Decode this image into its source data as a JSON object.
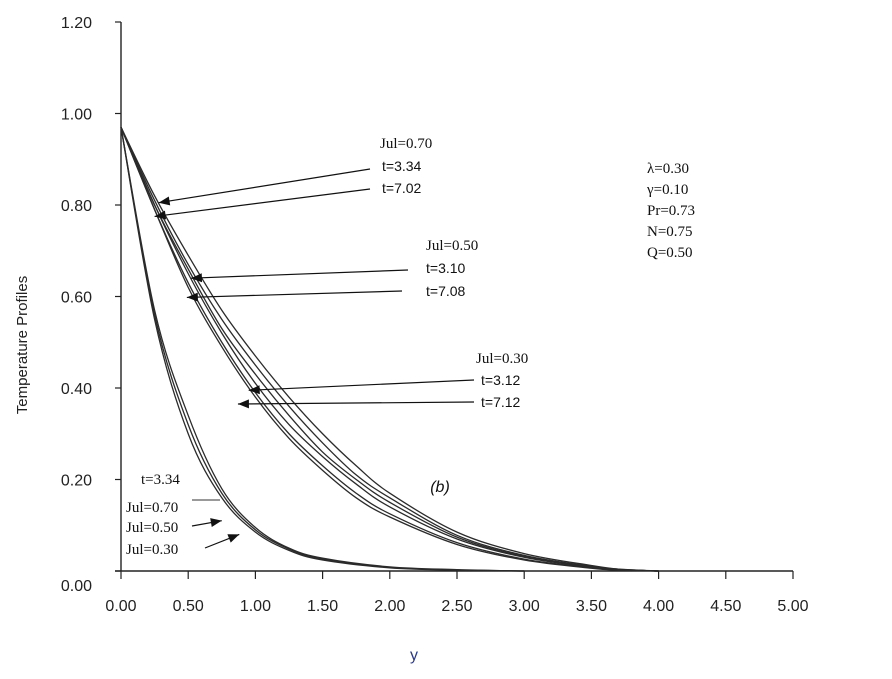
{
  "chart_data": {
    "type": "line",
    "title": "",
    "xlabel": "y",
    "ylabel": "Temperature Profiles",
    "xlim": [
      0,
      5
    ],
    "ylim": [
      0,
      1.2
    ],
    "x_ticks": [
      "0.00",
      "0.50",
      "1.00",
      "1.50",
      "2.00",
      "2.50",
      "3.00",
      "3.50",
      "4.00",
      "4.50",
      "5.00"
    ],
    "y_ticks": [
      "0.00",
      "0.20",
      "0.40",
      "0.60",
      "0.80",
      "1.00",
      "1.20"
    ],
    "grid": false,
    "panel_label": "(b)",
    "parameters": [
      "λ=0.30",
      "γ=0.10",
      "Pr=0.73",
      "N=0.75",
      "Q=0.50"
    ],
    "series": [
      {
        "x": [
          0,
          0.25,
          0.5,
          0.75,
          1.0,
          1.25,
          1.5,
          1.75,
          2.0,
          2.5,
          3.0,
          3.5,
          3.7,
          4.0
        ],
        "y": [
          0.97,
          0.82,
          0.69,
          0.57,
          0.47,
          0.38,
          0.3,
          0.23,
          0.17,
          0.085,
          0.038,
          0.012,
          0.004,
          0.0
        ]
      },
      {
        "x": [
          0,
          0.25,
          0.5,
          0.75,
          1.0,
          1.25,
          1.5,
          1.75,
          2.0,
          2.5,
          3.0,
          3.5,
          3.7,
          4.0
        ],
        "y": [
          0.97,
          0.8,
          0.65,
          0.52,
          0.41,
          0.32,
          0.25,
          0.19,
          0.14,
          0.07,
          0.03,
          0.008,
          0.003,
          0.0
        ]
      },
      {
        "x": [
          0,
          0.25,
          0.5,
          0.75,
          1.0,
          1.25,
          1.5,
          1.75,
          2.0,
          2.5,
          3.0,
          3.5,
          3.7,
          4.0
        ],
        "y": [
          0.97,
          0.81,
          0.67,
          0.55,
          0.45,
          0.36,
          0.28,
          0.21,
          0.16,
          0.078,
          0.034,
          0.01,
          0.004,
          0.0
        ]
      },
      {
        "x": [
          0,
          0.25,
          0.5,
          0.75,
          1.0,
          1.25,
          1.5,
          1.75,
          2.0,
          2.5,
          3.0,
          3.5,
          3.7,
          4.0
        ],
        "y": [
          0.97,
          0.79,
          0.63,
          0.5,
          0.39,
          0.3,
          0.23,
          0.17,
          0.125,
          0.062,
          0.026,
          0.007,
          0.002,
          0.0
        ]
      },
      {
        "x": [
          0,
          0.25,
          0.5,
          0.75,
          1.0,
          1.25,
          1.5,
          1.75,
          2.0,
          2.5,
          3.0,
          3.5,
          3.7,
          4.0
        ],
        "y": [
          0.97,
          0.8,
          0.66,
          0.53,
          0.43,
          0.34,
          0.26,
          0.2,
          0.15,
          0.074,
          0.032,
          0.009,
          0.003,
          0.0
        ]
      },
      {
        "x": [
          0,
          0.25,
          0.5,
          0.75,
          1.0,
          1.25,
          1.5,
          1.75,
          2.0,
          2.5,
          3.0,
          3.5,
          3.7,
          4.0
        ],
        "y": [
          0.97,
          0.79,
          0.62,
          0.49,
          0.38,
          0.29,
          0.22,
          0.16,
          0.118,
          0.058,
          0.024,
          0.006,
          0.002,
          0.0
        ]
      },
      {
        "x": [
          0,
          0.25,
          0.5,
          0.75,
          1.0,
          1.25,
          1.5,
          2.0,
          2.5,
          3.0
        ],
        "y": [
          0.97,
          0.55,
          0.3,
          0.16,
          0.085,
          0.045,
          0.024,
          0.007,
          0.002,
          0.0
        ]
      },
      {
        "x": [
          0,
          0.25,
          0.5,
          0.75,
          1.0,
          1.25,
          1.5,
          2.0,
          2.5,
          3.0
        ],
        "y": [
          0.97,
          0.56,
          0.32,
          0.17,
          0.09,
          0.048,
          0.026,
          0.008,
          0.002,
          0.0
        ]
      },
      {
        "x": [
          0,
          0.25,
          0.5,
          0.75,
          1.0,
          1.25,
          1.5,
          2.0,
          2.5,
          3.0
        ],
        "y": [
          0.97,
          0.57,
          0.34,
          0.18,
          0.095,
          0.05,
          0.028,
          0.009,
          0.003,
          0.0
        ]
      }
    ],
    "annotations": [
      {
        "group": "upper",
        "text": [
          "Jul=0.70",
          "t=3.34",
          "t=7.02"
        ],
        "point_x": [
          0.28,
          0.25
        ],
        "point_y": [
          0.805,
          0.775
        ]
      },
      {
        "group": "middle",
        "text": [
          "Jul=0.50",
          "t=3.10",
          "t=7.08"
        ],
        "point_x": [
          0.52,
          0.49
        ],
        "point_y": [
          0.64,
          0.598
        ]
      },
      {
        "group": "lower",
        "text": [
          "Jul=0.30",
          "t=3.12",
          "t=7.12"
        ],
        "point_x": [
          0.95,
          0.87
        ],
        "point_y": [
          0.395,
          0.365
        ]
      },
      {
        "group": "inner",
        "text": [
          "t=3.34",
          "Jul=0.70",
          "Jul=0.50",
          "Jul=0.30"
        ],
        "point_x": [
          0.75,
          0.88
        ],
        "point_y": [
          0.11,
          0.08
        ]
      }
    ]
  }
}
